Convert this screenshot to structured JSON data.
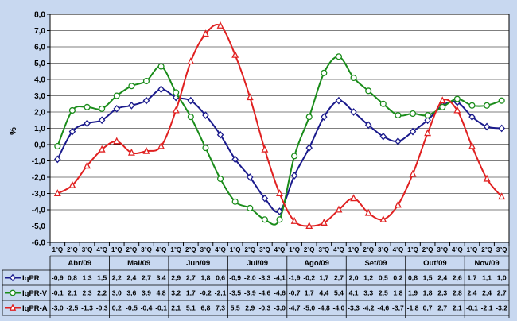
{
  "chart_data": {
    "type": "line",
    "ylabel": "%",
    "ylim": [
      -6,
      8
    ],
    "ytick_step": 1,
    "yticks_labels": [
      "-6,0",
      "-5,0",
      "-4,0",
      "-3,0",
      "-2,0",
      "-1,0",
      "0,0",
      "1,0",
      "2,0",
      "3,0",
      "4,0",
      "5,0",
      "6,0",
      "7,0",
      "8,0"
    ],
    "months": [
      "Abr/09",
      "Mai/09",
      "Jun/09",
      "Jul/09",
      "Ago/09",
      "Set/09",
      "Out/09",
      "Nov/09"
    ],
    "quarter_labels": [
      "1ªQ",
      "2ªQ",
      "3ªQ",
      "4ªQ",
      "1ªQ",
      "2ªQ",
      "3ªQ",
      "4ªQ",
      "1ªQ",
      "2ªQ",
      "3ªQ",
      "4ªQ",
      "1ªQ",
      "2ªQ",
      "3ªQ",
      "4ªQ",
      "1ªQ",
      "2ªQ",
      "3ªQ",
      "4ªQ",
      "1ªQ",
      "2ªQ",
      "3ªQ",
      "4ªQ",
      "1ªQ",
      "2ªQ",
      "3ªQ",
      "4ªQ",
      "1ªQ",
      "2ªQ",
      "3ªQ"
    ],
    "grid": true,
    "legend": "table-left",
    "series": [
      {
        "name": "IqPR",
        "color": "#1a1a8c",
        "marker": "diamond",
        "values": [
          -0.9,
          0.8,
          1.3,
          1.5,
          2.2,
          2.4,
          2.7,
          3.4,
          2.9,
          2.7,
          1.8,
          0.6,
          -0.9,
          -2.0,
          -3.3,
          -4.1,
          -1.9,
          -0.2,
          1.7,
          2.7,
          2.0,
          1.2,
          0.5,
          0.2,
          0.8,
          1.5,
          2.4,
          2.6,
          1.7,
          1.1,
          1.0
        ],
        "labels": [
          "-0,9",
          "0,8",
          "1,3",
          "1,5",
          "2,2",
          "2,4",
          "2,7",
          "3,4",
          "2,9",
          "2,7",
          "1,8",
          "0,6",
          "-0,9",
          "-2,0",
          "-3,3",
          "-4,1",
          "-1,9",
          "-0,2",
          "1,7",
          "2,7",
          "2,0",
          "1,2",
          "0,5",
          "0,2",
          "0,8",
          "1,5",
          "2,4",
          "2,6",
          "1,7",
          "1,1",
          "1,0"
        ]
      },
      {
        "name": "IqPR-V",
        "color": "#1a8c1a",
        "marker": "circle",
        "values": [
          -0.1,
          2.1,
          2.3,
          2.2,
          3.0,
          3.6,
          3.9,
          4.8,
          3.2,
          1.7,
          -0.2,
          -2.1,
          -3.5,
          -3.9,
          -4.6,
          -4.6,
          -0.7,
          1.7,
          4.4,
          5.4,
          4.1,
          3.3,
          2.5,
          1.8,
          1.9,
          1.8,
          2.3,
          2.8,
          2.4,
          2.4,
          2.7
        ],
        "labels": [
          "-0,1",
          "2,1",
          "2,3",
          "2,2",
          "3,0",
          "3,6",
          "3,9",
          "4,8",
          "3,2",
          "1,7",
          "-0,2",
          "-2,1",
          "-3,5",
          "-3,9",
          "-4,6",
          "-4,6",
          "-0,7",
          "1,7",
          "4,4",
          "5,4",
          "4,1",
          "3,3",
          "2,5",
          "1,8",
          "1,9",
          "1,8",
          "2,3",
          "2,8",
          "2,4",
          "2,4",
          "2,7"
        ]
      },
      {
        "name": "IqPR-A",
        "color": "#e02020",
        "marker": "triangle",
        "values": [
          -3.0,
          -2.5,
          -1.3,
          -0.3,
          0.2,
          -0.5,
          -0.4,
          -0.1,
          2.1,
          5.1,
          6.8,
          7.3,
          5.5,
          2.9,
          -0.3,
          -3.0,
          -4.7,
          -5.0,
          -4.8,
          -4.0,
          -3.3,
          -4.2,
          -4.6,
          -3.7,
          -1.8,
          0.7,
          2.7,
          2.1,
          -0.1,
          -2.1,
          -3.2
        ],
        "labels": [
          "-3,0",
          "-2,5",
          "-1,3",
          "-0,3",
          "0,2",
          "-0,5",
          "-0,4",
          "-0,1",
          "2,1",
          "5,1",
          "6,8",
          "7,3",
          "5,5",
          "2,9",
          "-0,3",
          "-3,0",
          "-4,7",
          "-5,0",
          "-4,8",
          "-4,0",
          "-3,3",
          "-4,2",
          "-4,6",
          "-3,7",
          "-1,8",
          "0,7",
          "2,7",
          "2,1",
          "-0,1",
          "-2,1",
          "-3,2"
        ]
      }
    ]
  }
}
